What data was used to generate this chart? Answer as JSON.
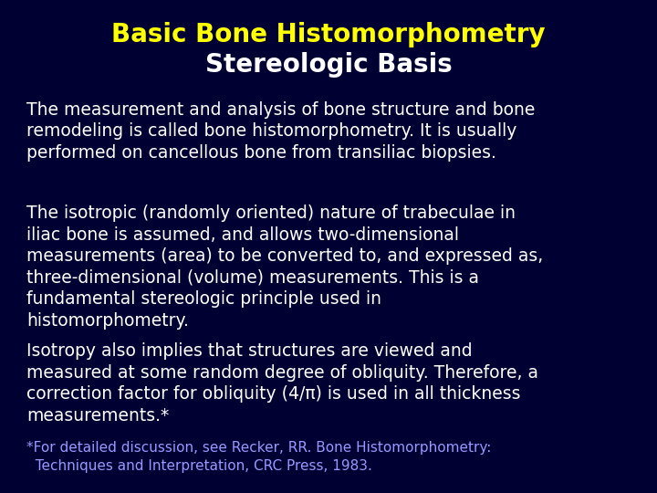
{
  "title_line1": "Basic Bone Histomorphometry",
  "title_line2": "Stereologic Basis",
  "title_line1_color": "#FFFF00",
  "title_line2_color": "#FFFFFF",
  "background_color": "#000033",
  "body_text_color": "#FFFFFF",
  "footnote_color": "#9999FF",
  "paragraph1": "The measurement and analysis of bone structure and bone\nremodeling is called bone histomorphometry. It is usually\nperformed on cancellous bone from transiliac biopsies.",
  "paragraph2": "The isotropic (randomly oriented) nature of trabeculae in\niliac bone is assumed, and allows two-dimensional\nmeasurements (area) to be converted to, and expressed as,\nthree-dimensional (volume) measurements. This is a\nfundamental stereologic principle used in\nhistomorphometry.",
  "paragraph3": "Isotropy also implies that structures are viewed and\nmeasured at some random degree of obliquity. Therefore, a\ncorrection factor for obliquity (4/π) is used in all thickness\nmeasurements.*",
  "footnote_line1": "*For detailed discussion, see Recker, RR. Bone Histomorphometry:",
  "footnote_line2": "  Techniques and Interpretation, CRC Press, 1983.",
  "title_fontsize": 20,
  "body_fontsize": 13.5,
  "footnote_fontsize": 11.0
}
